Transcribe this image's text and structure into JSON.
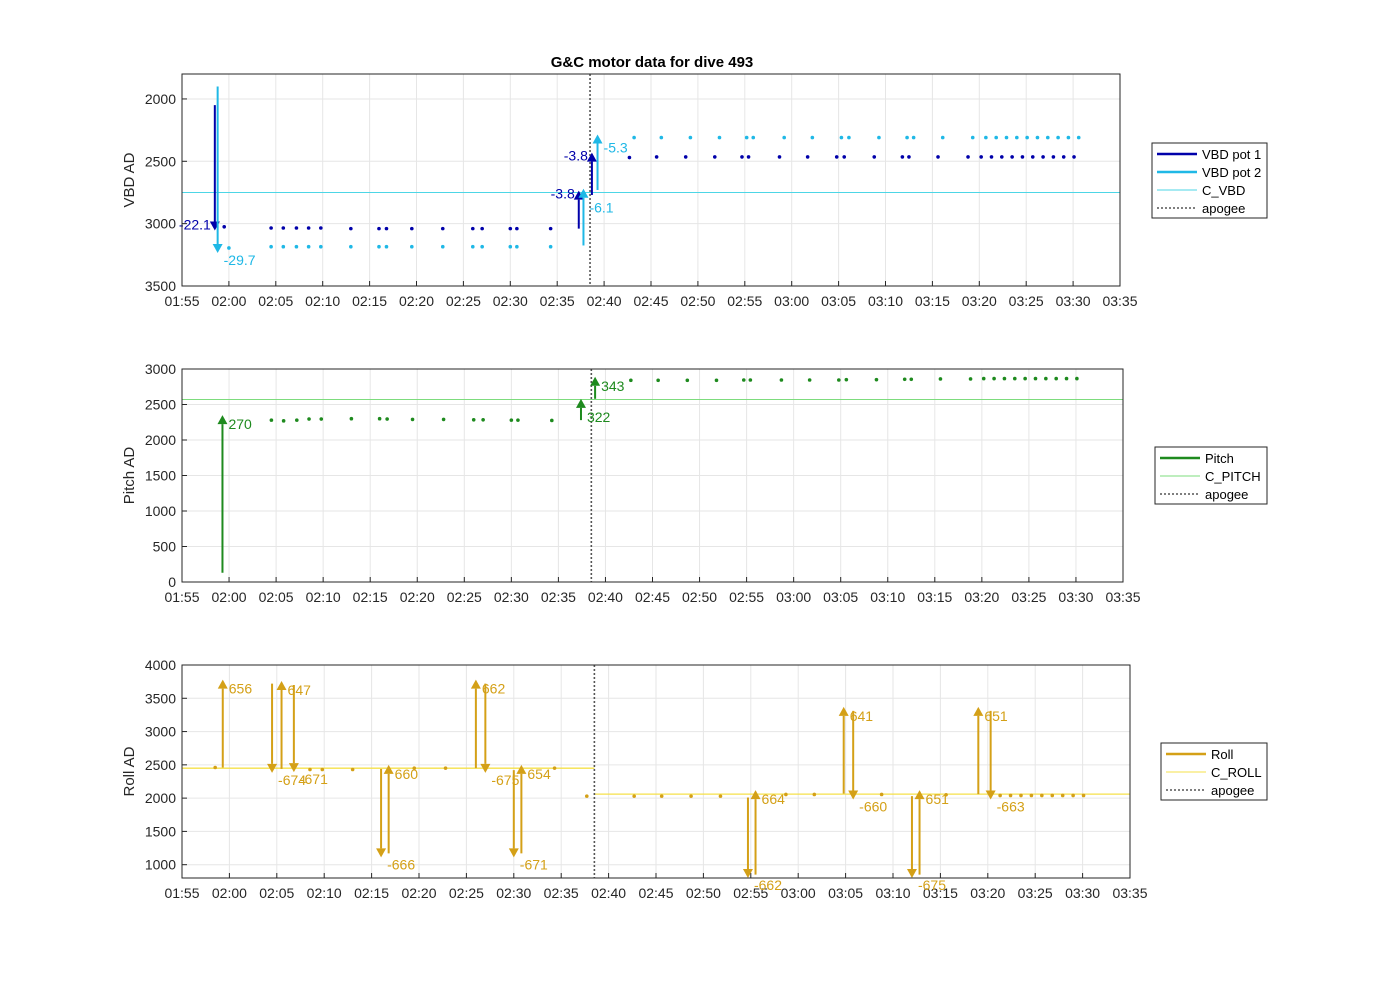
{
  "chart_data": [
    {
      "type": "scatter",
      "title": "G&C motor data for dive 493",
      "ylabel": "VBD AD",
      "xlabel": "",
      "xlim": [
        "01:55",
        "03:35"
      ],
      "ylim": [
        3500,
        1800
      ],
      "y_reversed": true,
      "xticks": [
        "01:55",
        "02:00",
        "02:05",
        "02:10",
        "02:15",
        "02:20",
        "02:25",
        "02:30",
        "02:35",
        "02:40",
        "02:45",
        "02:50",
        "02:55",
        "03:00",
        "03:05",
        "03:10",
        "03:15",
        "03:20",
        "03:25",
        "03:30",
        "03:35"
      ],
      "yticks": [
        "2000",
        "2500",
        "3000",
        "3500"
      ],
      "grid": true,
      "legend_position": "outside-right",
      "legend": [
        "VBD pot 1",
        "VBD pot 2",
        "C_VBD",
        "apogee"
      ],
      "colors": {
        "pot1": "#0000aa",
        "pot2": "#1fb8e6",
        "c_line": "#4dd6e6",
        "apogee": "#555555"
      },
      "c_value": 2750,
      "apogee": "02:38.5",
      "series": [
        {
          "name": "VBD pot 1",
          "x": [
            "01:59.5",
            "02:04.5",
            "02:05.8",
            "02:07.2",
            "02:08.5",
            "02:09.8",
            "02:13",
            "02:16",
            "02:16.8",
            "02:19.5",
            "02:22.8",
            "02:26",
            "02:27",
            "02:30",
            "02:30.7",
            "02:34.3",
            "02:42.7",
            "02:45.6",
            "02:48.7",
            "02:51.8",
            "02:54.7",
            "02:55.4",
            "02:58.7",
            "03:01.7",
            "03:04.8",
            "03:05.6",
            "03:08.8",
            "03:11.8",
            "03:12.5",
            "03:15.6",
            "03:18.8",
            "03:20.2",
            "03:21.3",
            "03:22.4",
            "03:23.5",
            "03:24.6",
            "03:25.7",
            "03:26.8",
            "03:27.9",
            "03:29",
            "03:30.1"
          ],
          "y": [
            3025,
            3035,
            3035,
            3035,
            3035,
            3035,
            3040,
            3040,
            3040,
            3040,
            3040,
            3040,
            3040,
            3040,
            3040,
            3040,
            2470,
            2465,
            2465,
            2465,
            2465,
            2465,
            2465,
            2465,
            2465,
            2465,
            2465,
            2465,
            2465,
            2465,
            2465,
            2465,
            2465,
            2465,
            2465,
            2465,
            2465,
            2465,
            2465,
            2465,
            2465
          ]
        },
        {
          "name": "VBD pot 2",
          "x": [
            "02:00",
            "02:04.5",
            "02:05.8",
            "02:07.2",
            "02:08.5",
            "02:09.8",
            "02:13",
            "02:16",
            "02:16.8",
            "02:19.5",
            "02:22.8",
            "02:26",
            "02:27",
            "02:30",
            "02:30.7",
            "02:34.3",
            "02:43.2",
            "02:46.1",
            "02:49.2",
            "02:52.3",
            "02:55.2",
            "02:55.9",
            "02:59.2",
            "03:02.2",
            "03:05.3",
            "03:06.1",
            "03:09.3",
            "03:12.3",
            "03:13",
            "03:16.1",
            "03:19.3",
            "03:20.7",
            "03:21.8",
            "03:22.9",
            "03:24",
            "03:25.1",
            "03:26.2",
            "03:27.3",
            "03:28.4",
            "03:29.5",
            "03:30.6"
          ],
          "y": [
            3195,
            3185,
            3185,
            3185,
            3185,
            3185,
            3185,
            3185,
            3185,
            3185,
            3185,
            3185,
            3185,
            3185,
            3185,
            3185,
            2310,
            2310,
            2310,
            2310,
            2310,
            2310,
            2310,
            2310,
            2310,
            2310,
            2310,
            2310,
            2310,
            2310,
            2310,
            2310,
            2310,
            2310,
            2310,
            2310,
            2310,
            2310,
            2310,
            2310,
            2310
          ]
        }
      ],
      "moves": [
        {
          "series": "VBD pot 1",
          "x": "01:58.5",
          "from": 2050,
          "to": 3055,
          "label": "-22.1"
        },
        {
          "series": "VBD pot 2",
          "x": "01:58.8",
          "from": 1900,
          "to": 3235,
          "label": "-29.7"
        },
        {
          "series": "VBD pot 1",
          "x": "02:37.3",
          "from": 3040,
          "to": 2735,
          "label": "-3.8"
        },
        {
          "series": "VBD pot 2",
          "x": "02:37.8",
          "from": 3175,
          "to": 2720,
          "label": "-6.1"
        },
        {
          "series": "VBD pot 1",
          "x": "02:38.7",
          "from": 2770,
          "to": 2430,
          "label": "-3.8"
        },
        {
          "series": "VBD pot 2",
          "x": "02:39.3",
          "from": 2730,
          "to": 2285,
          "label": "-5.3"
        }
      ]
    },
    {
      "type": "scatter",
      "title": "",
      "ylabel": "Pitch AD",
      "xlabel": "",
      "xlim": [
        "01:55",
        "03:35"
      ],
      "ylim": [
        0,
        3000
      ],
      "xticks": [
        "01:55",
        "02:00",
        "02:05",
        "02:10",
        "02:15",
        "02:20",
        "02:25",
        "02:30",
        "02:35",
        "02:40",
        "02:45",
        "02:50",
        "02:55",
        "03:00",
        "03:05",
        "03:10",
        "03:15",
        "03:20",
        "03:25",
        "03:30",
        "03:35"
      ],
      "yticks": [
        "0",
        "500",
        "1000",
        "1500",
        "2000",
        "2500",
        "3000"
      ],
      "grid": true,
      "legend_position": "outside-right",
      "legend": [
        "Pitch",
        "C_PITCH",
        "apogee"
      ],
      "colors": {
        "series": "#1e8a1e",
        "c_line": "#7ddc7d",
        "apogee": "#555555"
      },
      "c_value": 2570,
      "apogee": "02:38.5",
      "series": [
        {
          "name": "Pitch",
          "x": [
            "02:04.5",
            "02:05.8",
            "02:07.2",
            "02:08.5",
            "02:09.8",
            "02:13",
            "02:16",
            "02:16.8",
            "02:19.5",
            "02:22.8",
            "02:26",
            "02:27",
            "02:30",
            "02:30.7",
            "02:34.3",
            "02:42.7",
            "02:45.6",
            "02:48.7",
            "02:51.8",
            "02:54.7",
            "02:55.4",
            "02:58.7",
            "03:01.7",
            "03:04.8",
            "03:05.6",
            "03:08.8",
            "03:11.8",
            "03:12.5",
            "03:15.6",
            "03:18.8",
            "03:20.2",
            "03:21.3",
            "03:22.4",
            "03:23.5",
            "03:24.6",
            "03:25.7",
            "03:26.8",
            "03:27.9",
            "03:29",
            "03:30.1"
          ],
          "y": [
            2280,
            2270,
            2280,
            2295,
            2295,
            2300,
            2300,
            2295,
            2290,
            2290,
            2285,
            2285,
            2280,
            2280,
            2275,
            2840,
            2840,
            2840,
            2840,
            2845,
            2845,
            2845,
            2845,
            2845,
            2850,
            2850,
            2855,
            2855,
            2860,
            2860,
            2865,
            2865,
            2865,
            2865,
            2865,
            2865,
            2865,
            2865,
            2865,
            2865
          ]
        }
      ],
      "moves": [
        {
          "series": "Pitch",
          "x": "01:59.3",
          "from": 130,
          "to": 2350,
          "label": "270"
        },
        {
          "series": "Pitch",
          "x": "02:37.4",
          "from": 2280,
          "to": 2580,
          "label": "322"
        },
        {
          "series": "Pitch",
          "x": "02:38.9",
          "from": 2580,
          "to": 2890,
          "label": "343"
        }
      ]
    },
    {
      "type": "scatter",
      "title": "",
      "ylabel": "Roll AD",
      "xlabel": "",
      "xlim": [
        "01:55",
        "03:35"
      ],
      "ylim": [
        800,
        4000
      ],
      "xticks": [
        "01:55",
        "02:00",
        "02:05",
        "02:10",
        "02:15",
        "02:20",
        "02:25",
        "02:30",
        "02:35",
        "02:40",
        "02:45",
        "02:50",
        "02:55",
        "03:00",
        "03:05",
        "03:10",
        "03:15",
        "03:20",
        "03:25",
        "03:30",
        "03:35"
      ],
      "yticks": [
        "1000",
        "1500",
        "2000",
        "2500",
        "3000",
        "3500",
        "4000"
      ],
      "grid": true,
      "legend_position": "outside-right",
      "legend": [
        "Roll",
        "C_ROLL",
        "apogee"
      ],
      "colors": {
        "series": "#d4a017",
        "c_line": "#f5e04a",
        "apogee": "#555555"
      },
      "c_segments": [
        {
          "from": "01:55",
          "to": "02:38.5",
          "value": 2450
        },
        {
          "from": "02:38.5",
          "to": "03:35",
          "value": 2060
        }
      ],
      "apogee": "02:38.5",
      "series": [
        {
          "name": "Roll",
          "x": [
            "01:58.5",
            "02:08.5",
            "02:09.8",
            "02:13",
            "02:19.5",
            "02:22.8",
            "02:34.3",
            "02:37.7",
            "02:42.7",
            "02:45.6",
            "02:48.7",
            "02:51.8",
            "02:58.7",
            "03:01.7",
            "03:08.8",
            "03:15.6",
            "03:21.3",
            "03:22.4",
            "03:23.5",
            "03:24.6",
            "03:25.7",
            "03:26.8",
            "03:27.9",
            "03:29",
            "03:30.1"
          ],
          "y": [
            2460,
            2430,
            2430,
            2430,
            2450,
            2450,
            2450,
            2030,
            2030,
            2030,
            2030,
            2030,
            2055,
            2055,
            2055,
            2050,
            2040,
            2040,
            2040,
            2040,
            2040,
            2040,
            2040,
            2040,
            2040
          ]
        }
      ],
      "moves": [
        {
          "series": "Roll",
          "x": "01:59.3",
          "from": 2460,
          "to": 3780,
          "label": "656"
        },
        {
          "series": "Roll",
          "x": "02:04.5",
          "from": 3720,
          "to": 2380,
          "label": "-674"
        },
        {
          "series": "Roll",
          "x": "02:05.5",
          "from": 2440,
          "to": 3760,
          "label": "647"
        },
        {
          "series": "Roll",
          "x": "02:06.8",
          "from": 3700,
          "to": 2390,
          "label": "-671"
        },
        {
          "series": "Roll",
          "x": "02:16",
          "from": 2440,
          "to": 1110,
          "label": "-666"
        },
        {
          "series": "Roll",
          "x": "02:16.8",
          "from": 1170,
          "to": 2500,
          "label": "660"
        },
        {
          "series": "Roll",
          "x": "02:26",
          "from": 2450,
          "to": 3780,
          "label": "662"
        },
        {
          "series": "Roll",
          "x": "02:27",
          "from": 3720,
          "to": 2380,
          "label": "-675"
        },
        {
          "series": "Roll",
          "x": "02:30",
          "from": 2420,
          "to": 1110,
          "label": "-671"
        },
        {
          "series": "Roll",
          "x": "02:30.8",
          "from": 1170,
          "to": 2500,
          "label": "654"
        },
        {
          "series": "Roll",
          "x": "02:54.7",
          "from": 2010,
          "to": 780,
          "label": "-662"
        },
        {
          "series": "Roll",
          "x": "02:55.5",
          "from": 850,
          "to": 2120,
          "label": "664"
        },
        {
          "series": "Roll",
          "x": "03:04.8",
          "from": 2070,
          "to": 3370,
          "label": "641"
        },
        {
          "series": "Roll",
          "x": "03:05.8",
          "from": 3310,
          "to": 1980,
          "label": "-660"
        },
        {
          "series": "Roll",
          "x": "03:12",
          "from": 2030,
          "to": 780,
          "label": "-675"
        },
        {
          "series": "Roll",
          "x": "03:12.8",
          "from": 850,
          "to": 2120,
          "label": "651"
        },
        {
          "series": "Roll",
          "x": "03:19",
          "from": 2060,
          "to": 3370,
          "label": "651"
        },
        {
          "series": "Roll",
          "x": "03:20.3",
          "from": 3310,
          "to": 1980,
          "label": "-663"
        }
      ]
    }
  ]
}
